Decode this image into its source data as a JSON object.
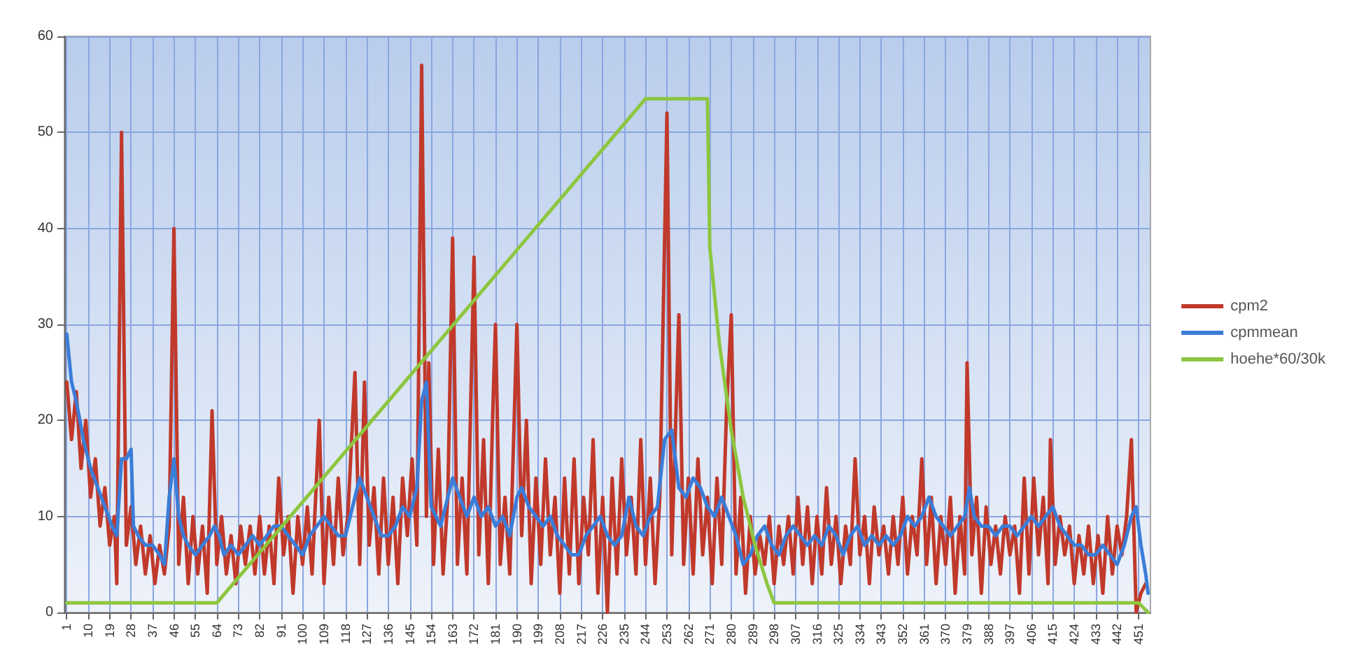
{
  "chart_data": {
    "type": "line",
    "xlim": [
      0,
      456
    ],
    "ylim": [
      0,
      60
    ],
    "yticks": [
      0,
      10,
      20,
      30,
      40,
      50,
      60
    ],
    "xticks": [
      1,
      10,
      19,
      28,
      37,
      46,
      55,
      64,
      73,
      82,
      91,
      100,
      109,
      118,
      127,
      136,
      145,
      154,
      163,
      172,
      181,
      190,
      199,
      208,
      217,
      226,
      235,
      244,
      253,
      262,
      271,
      280,
      289,
      298,
      307,
      316,
      325,
      334,
      343,
      352,
      361,
      370,
      379,
      388,
      397,
      406,
      415,
      424,
      433,
      442,
      451
    ],
    "grid": true,
    "legend": "right",
    "marker": "none",
    "line_style": "solid",
    "series": [
      {
        "name": "cpm2",
        "color": "#c0392b",
        "x": [
          1,
          3,
          5,
          7,
          9,
          11,
          13,
          15,
          17,
          19,
          21,
          22,
          24,
          26,
          28,
          30,
          32,
          34,
          36,
          38,
          40,
          42,
          44,
          46,
          48,
          50,
          52,
          54,
          56,
          58,
          60,
          62,
          64,
          66,
          68,
          70,
          72,
          74,
          76,
          78,
          80,
          82,
          84,
          86,
          88,
          90,
          92,
          94,
          96,
          98,
          100,
          102,
          104,
          107,
          109,
          111,
          113,
          115,
          117,
          119,
          122,
          124,
          126,
          128,
          130,
          132,
          134,
          136,
          138,
          140,
          142,
          144,
          146,
          148,
          150,
          152,
          153,
          155,
          157,
          159,
          161,
          163,
          165,
          167,
          169,
          172,
          174,
          176,
          178,
          180,
          181,
          183,
          185,
          187,
          190,
          192,
          194,
          196,
          198,
          200,
          202,
          204,
          206,
          208,
          210,
          212,
          214,
          216,
          218,
          220,
          222,
          224,
          226,
          228,
          230,
          232,
          234,
          236,
          238,
          240,
          242,
          244,
          246,
          248,
          250,
          253,
          255,
          258,
          260,
          262,
          264,
          266,
          268,
          270,
          272,
          274,
          276,
          278,
          280,
          282,
          284,
          286,
          288,
          290,
          292,
          294,
          296,
          298,
          300,
          302,
          304,
          306,
          308,
          310,
          312,
          314,
          316,
          318,
          320,
          322,
          324,
          326,
          328,
          330,
          332,
          334,
          336,
          338,
          340,
          342,
          344,
          346,
          348,
          350,
          352,
          354,
          356,
          358,
          360,
          362,
          364,
          366,
          368,
          370,
          372,
          374,
          376,
          378,
          379,
          381,
          383,
          385,
          387,
          389,
          391,
          393,
          395,
          397,
          399,
          401,
          403,
          405,
          407,
          409,
          411,
          413,
          414,
          416,
          418,
          420,
          422,
          424,
          426,
          428,
          430,
          432,
          434,
          436,
          438,
          440,
          442,
          444,
          446,
          448,
          450,
          452,
          454
        ],
        "values": [
          24,
          18,
          23,
          15,
          20,
          12,
          16,
          9,
          13,
          7,
          10,
          3,
          50,
          7,
          11,
          5,
          9,
          4,
          8,
          3,
          7,
          4,
          9,
          40,
          5,
          12,
          3,
          10,
          4,
          9,
          2,
          21,
          5,
          10,
          4,
          8,
          3,
          9,
          5,
          9,
          4,
          10,
          4,
          9,
          3,
          14,
          6,
          10,
          2,
          10,
          5,
          11,
          4,
          20,
          3,
          12,
          5,
          14,
          6,
          10,
          25,
          5,
          24,
          7,
          13,
          4,
          14,
          5,
          12,
          3,
          14,
          8,
          16,
          7,
          57,
          10,
          26,
          5,
          17,
          4,
          12,
          39,
          5,
          14,
          4,
          37,
          6,
          18,
          3,
          22,
          30,
          5,
          12,
          4,
          30,
          8,
          20,
          3,
          14,
          5,
          16,
          6,
          12,
          2,
          14,
          4,
          16,
          3,
          12,
          6,
          18,
          2,
          12,
          0,
          14,
          4,
          16,
          6,
          12,
          4,
          18,
          5,
          14,
          3,
          12,
          52,
          6,
          31,
          5,
          14,
          4,
          16,
          6,
          12,
          3,
          14,
          5,
          21,
          31,
          4,
          12,
          2,
          10,
          4,
          8,
          5,
          10,
          3,
          9,
          5,
          10,
          4,
          12,
          5,
          11,
          3,
          10,
          4,
          13,
          5,
          10,
          3,
          9,
          5,
          16,
          6,
          10,
          3,
          11,
          6,
          9,
          4,
          10,
          5,
          12,
          4,
          10,
          6,
          16,
          5,
          12,
          3,
          10,
          5,
          12,
          2,
          10,
          4,
          26,
          6,
          12,
          2,
          11,
          5,
          9,
          4,
          10,
          6,
          9,
          2,
          14,
          4,
          14,
          6,
          12,
          3,
          18,
          5,
          10,
          6,
          9,
          3,
          8,
          4,
          9,
          3,
          8,
          2,
          10,
          4,
          9,
          6,
          10,
          18,
          0,
          2,
          3
        ]
      },
      {
        "name": "cpmmean",
        "color": "#3b7dd8",
        "x": [
          1,
          3,
          5,
          8,
          11,
          14,
          17,
          20,
          22,
          24,
          26,
          28,
          29,
          31,
          34,
          37,
          40,
          42,
          44,
          46,
          48,
          50,
          52,
          55,
          58,
          61,
          63,
          65,
          67,
          70,
          73,
          76,
          79,
          82,
          85,
          88,
          91,
          94,
          97,
          100,
          103,
          106,
          109,
          112,
          115,
          118,
          121,
          124,
          127,
          130,
          133,
          136,
          139,
          142,
          145,
          148,
          150,
          152,
          154,
          156,
          158,
          160,
          163,
          166,
          169,
          172,
          175,
          178,
          181,
          184,
          187,
          190,
          192,
          195,
          198,
          201,
          204,
          207,
          210,
          213,
          216,
          219,
          222,
          225,
          228,
          231,
          234,
          237,
          240,
          243,
          246,
          249,
          252,
          255,
          258,
          261,
          264,
          267,
          270,
          273,
          276,
          279,
          282,
          285,
          288,
          291,
          294,
          297,
          300,
          303,
          306,
          309,
          312,
          315,
          318,
          321,
          324,
          327,
          330,
          333,
          336,
          339,
          342,
          345,
          348,
          351,
          354,
          357,
          360,
          363,
          366,
          369,
          372,
          375,
          378,
          380,
          382,
          385,
          388,
          391,
          394,
          397,
          400,
          403,
          406,
          409,
          412,
          415,
          418,
          421,
          424,
          427,
          430,
          433,
          436,
          439,
          442,
          445,
          448,
          450,
          452,
          454,
          455
        ],
        "values": [
          29,
          24,
          22,
          18,
          15,
          13,
          11,
          9,
          8,
          16,
          16,
          17,
          9,
          8,
          7,
          7,
          6,
          5,
          12,
          16,
          10,
          8,
          7,
          6,
          7,
          8,
          9,
          8,
          6,
          7,
          6,
          7,
          8,
          7,
          8,
          9,
          9,
          8,
          7,
          6,
          8,
          9,
          10,
          9,
          8,
          8,
          11,
          14,
          12,
          10,
          8,
          8,
          9,
          11,
          10,
          13,
          22,
          24,
          11,
          10,
          9,
          11,
          14,
          12,
          10,
          12,
          10,
          11,
          9,
          10,
          8,
          12,
          13,
          11,
          10,
          9,
          10,
          8,
          7,
          6,
          6,
          8,
          9,
          10,
          8,
          7,
          8,
          12,
          9,
          8,
          10,
          11,
          18,
          19,
          13,
          12,
          14,
          13,
          11,
          10,
          12,
          10,
          8,
          5,
          6,
          8,
          9,
          7,
          6,
          8,
          9,
          8,
          7,
          8,
          7,
          9,
          8,
          6,
          8,
          9,
          7,
          8,
          7,
          8,
          7,
          8,
          10,
          9,
          10,
          12,
          10,
          9,
          8,
          9,
          10,
          13,
          10,
          9,
          9,
          8,
          9,
          9,
          8,
          9,
          10,
          9,
          10,
          11,
          9,
          8,
          7,
          7,
          6,
          6,
          7,
          6,
          5,
          7,
          10,
          11,
          7,
          4,
          2
        ]
      },
      {
        "name": "hoehe*60/30k",
        "color": "#8dc63f",
        "x": [
          1,
          64,
          244,
          270,
          271,
          275,
          280,
          285,
          290,
          295,
          298,
          451,
          455
        ],
        "values": [
          1,
          1,
          53.5,
          53.5,
          38,
          28,
          19,
          12,
          7,
          3,
          1,
          1,
          0
        ]
      }
    ]
  }
}
